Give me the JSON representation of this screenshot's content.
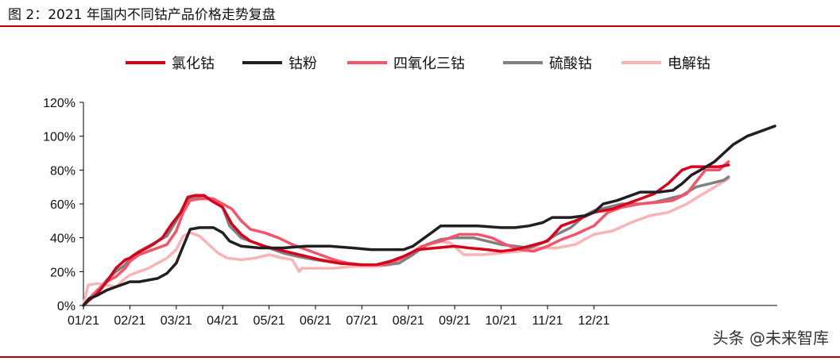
{
  "figure_title": "图 2：2021 年国内不同钴产品价格走势复盘",
  "watermark": "头条 @未来智库",
  "chart_data": {
    "type": "line",
    "title": "",
    "xlabel": "",
    "ylabel": "",
    "ylim": [
      0,
      1.2
    ],
    "grid": false,
    "legend_position": "top",
    "x_ticks": [
      "01/21",
      "02/21",
      "03/21",
      "04/21",
      "05/21",
      "06/21",
      "07/21",
      "08/21",
      "09/21",
      "10/21",
      "11/21",
      "12/21"
    ],
    "y_ticks": [
      "0%",
      "20%",
      "40%",
      "60%",
      "80%",
      "100%",
      "120%"
    ],
    "x_unit": "months since 01/21",
    "series": [
      {
        "name": "氯化钴",
        "color": "#d9001b",
        "width": 3.5,
        "points": [
          [
            0,
            0
          ],
          [
            0.12,
            0.03
          ],
          [
            0.3,
            0.07
          ],
          [
            0.5,
            0.14
          ],
          [
            0.7,
            0.22
          ],
          [
            0.9,
            0.27
          ],
          [
            1.0,
            0.28
          ],
          [
            1.1,
            0.3
          ],
          [
            1.3,
            0.33
          ],
          [
            1.5,
            0.36
          ],
          [
            1.7,
            0.4
          ],
          [
            1.9,
            0.48
          ],
          [
            2.1,
            0.55
          ],
          [
            2.25,
            0.64
          ],
          [
            2.4,
            0.65
          ],
          [
            2.6,
            0.65
          ],
          [
            2.75,
            0.62
          ],
          [
            3.0,
            0.58
          ],
          [
            3.2,
            0.48
          ],
          [
            3.4,
            0.42
          ],
          [
            3.6,
            0.38
          ],
          [
            3.9,
            0.35
          ],
          [
            4.2,
            0.33
          ],
          [
            4.5,
            0.31
          ],
          [
            4.8,
            0.29
          ],
          [
            5.1,
            0.27
          ],
          [
            5.5,
            0.25
          ],
          [
            6.0,
            0.24
          ],
          [
            6.3,
            0.24
          ],
          [
            6.6,
            0.26
          ],
          [
            6.9,
            0.29
          ],
          [
            7.2,
            0.33
          ],
          [
            7.6,
            0.34
          ],
          [
            8.0,
            0.35
          ],
          [
            8.3,
            0.34
          ],
          [
            8.7,
            0.33
          ],
          [
            9.0,
            0.32
          ],
          [
            9.3,
            0.33
          ],
          [
            9.6,
            0.35
          ],
          [
            10.0,
            0.38
          ],
          [
            10.3,
            0.47
          ],
          [
            10.6,
            0.5
          ],
          [
            11.0,
            0.55
          ],
          [
            11.4,
            0.57
          ],
          [
            11.7,
            0.6
          ],
          [
            12.0,
            0.63
          ],
          [
            12.3,
            0.66
          ],
          [
            12.6,
            0.72
          ],
          [
            12.9,
            0.8
          ],
          [
            13.1,
            0.82
          ],
          [
            13.4,
            0.82
          ],
          [
            13.7,
            0.82
          ],
          [
            13.9,
            0.83
          ]
        ]
      },
      {
        "name": "钴粉",
        "color": "#231f20",
        "width": 3.5,
        "points": [
          [
            0,
            0
          ],
          [
            0.12,
            0.04
          ],
          [
            0.3,
            0.06
          ],
          [
            0.5,
            0.09
          ],
          [
            0.7,
            0.11
          ],
          [
            0.9,
            0.13
          ],
          [
            1.0,
            0.14
          ],
          [
            1.2,
            0.14
          ],
          [
            1.4,
            0.15
          ],
          [
            1.6,
            0.16
          ],
          [
            1.8,
            0.19
          ],
          [
            2.0,
            0.25
          ],
          [
            2.15,
            0.35
          ],
          [
            2.3,
            0.45
          ],
          [
            2.5,
            0.46
          ],
          [
            2.8,
            0.46
          ],
          [
            3.0,
            0.43
          ],
          [
            3.15,
            0.38
          ],
          [
            3.4,
            0.35
          ],
          [
            3.8,
            0.34
          ],
          [
            4.3,
            0.34
          ],
          [
            4.8,
            0.35
          ],
          [
            5.3,
            0.35
          ],
          [
            5.8,
            0.34
          ],
          [
            6.2,
            0.33
          ],
          [
            6.6,
            0.33
          ],
          [
            6.9,
            0.33
          ],
          [
            7.1,
            0.35
          ],
          [
            7.3,
            0.39
          ],
          [
            7.5,
            0.43
          ],
          [
            7.7,
            0.47
          ],
          [
            8.0,
            0.47
          ],
          [
            8.5,
            0.47
          ],
          [
            9.0,
            0.46
          ],
          [
            9.3,
            0.46
          ],
          [
            9.6,
            0.47
          ],
          [
            9.9,
            0.49
          ],
          [
            10.1,
            0.52
          ],
          [
            10.5,
            0.52
          ],
          [
            10.8,
            0.53
          ],
          [
            11.0,
            0.55
          ],
          [
            11.2,
            0.6
          ],
          [
            11.5,
            0.62
          ],
          [
            11.8,
            0.65
          ],
          [
            12.0,
            0.67
          ],
          [
            12.4,
            0.67
          ],
          [
            12.7,
            0.68
          ],
          [
            12.9,
            0.72
          ],
          [
            13.1,
            0.77
          ],
          [
            13.3,
            0.8
          ],
          [
            13.6,
            0.85
          ],
          [
            13.8,
            0.9
          ],
          [
            14.0,
            0.95
          ],
          [
            14.3,
            1.0
          ],
          [
            14.6,
            1.03
          ],
          [
            14.9,
            1.06
          ]
        ]
      },
      {
        "name": "四氧化三钴",
        "color": "#f4546a",
        "width": 3.5,
        "points": [
          [
            0,
            0
          ],
          [
            0.12,
            0.04
          ],
          [
            0.3,
            0.09
          ],
          [
            0.5,
            0.14
          ],
          [
            0.7,
            0.17
          ],
          [
            0.9,
            0.22
          ],
          [
            1.0,
            0.26
          ],
          [
            1.2,
            0.3
          ],
          [
            1.4,
            0.32
          ],
          [
            1.6,
            0.34
          ],
          [
            1.8,
            0.36
          ],
          [
            2.0,
            0.44
          ],
          [
            2.15,
            0.55
          ],
          [
            2.3,
            0.62
          ],
          [
            2.5,
            0.63
          ],
          [
            2.8,
            0.63
          ],
          [
            3.0,
            0.6
          ],
          [
            3.2,
            0.57
          ],
          [
            3.4,
            0.5
          ],
          [
            3.6,
            0.45
          ],
          [
            3.9,
            0.43
          ],
          [
            4.2,
            0.4
          ],
          [
            4.5,
            0.36
          ],
          [
            4.8,
            0.33
          ],
          [
            5.1,
            0.3
          ],
          [
            5.4,
            0.27
          ],
          [
            5.7,
            0.25
          ],
          [
            6.0,
            0.24
          ],
          [
            6.4,
            0.24
          ],
          [
            6.7,
            0.26
          ],
          [
            7.0,
            0.3
          ],
          [
            7.3,
            0.35
          ],
          [
            7.7,
            0.38
          ],
          [
            8.1,
            0.42
          ],
          [
            8.5,
            0.42
          ],
          [
            8.8,
            0.4
          ],
          [
            9.1,
            0.36
          ],
          [
            9.4,
            0.33
          ],
          [
            9.7,
            0.32
          ],
          [
            10.0,
            0.35
          ],
          [
            10.3,
            0.39
          ],
          [
            10.6,
            0.42
          ],
          [
            11.0,
            0.47
          ],
          [
            11.3,
            0.55
          ],
          [
            11.6,
            0.58
          ],
          [
            12.0,
            0.6
          ],
          [
            12.4,
            0.61
          ],
          [
            12.7,
            0.62
          ],
          [
            13.0,
            0.66
          ],
          [
            13.2,
            0.73
          ],
          [
            13.4,
            0.8
          ],
          [
            13.7,
            0.8
          ],
          [
            13.9,
            0.85
          ]
        ]
      },
      {
        "name": "硫酸钴",
        "color": "#808080",
        "width": 3.5,
        "points": [
          [
            0,
            0
          ],
          [
            0.12,
            0.03
          ],
          [
            0.3,
            0.08
          ],
          [
            0.5,
            0.15
          ],
          [
            0.7,
            0.2
          ],
          [
            0.9,
            0.24
          ],
          [
            1.0,
            0.28
          ],
          [
            1.2,
            0.32
          ],
          [
            1.4,
            0.35
          ],
          [
            1.6,
            0.38
          ],
          [
            1.8,
            0.41
          ],
          [
            2.0,
            0.5
          ],
          [
            2.15,
            0.58
          ],
          [
            2.3,
            0.63
          ],
          [
            2.5,
            0.64
          ],
          [
            2.8,
            0.63
          ],
          [
            3.0,
            0.58
          ],
          [
            3.15,
            0.47
          ],
          [
            3.4,
            0.4
          ],
          [
            3.7,
            0.37
          ],
          [
            4.0,
            0.34
          ],
          [
            4.3,
            0.31
          ],
          [
            4.6,
            0.29
          ],
          [
            5.0,
            0.27
          ],
          [
            5.5,
            0.25
          ],
          [
            6.0,
            0.24
          ],
          [
            6.5,
            0.24
          ],
          [
            6.8,
            0.25
          ],
          [
            7.1,
            0.3
          ],
          [
            7.4,
            0.36
          ],
          [
            7.7,
            0.39
          ],
          [
            8.0,
            0.4
          ],
          [
            8.4,
            0.4
          ],
          [
            8.7,
            0.38
          ],
          [
            9.0,
            0.36
          ],
          [
            9.3,
            0.35
          ],
          [
            9.6,
            0.34
          ],
          [
            9.9,
            0.37
          ],
          [
            10.2,
            0.42
          ],
          [
            10.5,
            0.46
          ],
          [
            10.8,
            0.53
          ],
          [
            11.0,
            0.56
          ],
          [
            11.3,
            0.58
          ],
          [
            11.6,
            0.6
          ],
          [
            12.0,
            0.6
          ],
          [
            12.3,
            0.61
          ],
          [
            12.6,
            0.63
          ],
          [
            12.9,
            0.65
          ],
          [
            13.2,
            0.7
          ],
          [
            13.5,
            0.72
          ],
          [
            13.8,
            0.74
          ],
          [
            13.9,
            0.76
          ]
        ]
      },
      {
        "name": "电解钴",
        "color": "#fbb3b6",
        "width": 3.5,
        "points": [
          [
            0,
            0
          ],
          [
            0.1,
            0.12
          ],
          [
            0.3,
            0.13
          ],
          [
            0.5,
            0.12
          ],
          [
            0.7,
            0.11
          ],
          [
            0.9,
            0.16
          ],
          [
            1.0,
            0.18
          ],
          [
            1.2,
            0.2
          ],
          [
            1.4,
            0.22
          ],
          [
            1.6,
            0.25
          ],
          [
            1.8,
            0.28
          ],
          [
            2.0,
            0.33
          ],
          [
            2.15,
            0.41
          ],
          [
            2.3,
            0.43
          ],
          [
            2.5,
            0.41
          ],
          [
            2.7,
            0.36
          ],
          [
            2.9,
            0.31
          ],
          [
            3.1,
            0.28
          ],
          [
            3.4,
            0.27
          ],
          [
            3.7,
            0.28
          ],
          [
            4.0,
            0.3
          ],
          [
            4.3,
            0.28
          ],
          [
            4.5,
            0.27
          ],
          [
            4.65,
            0.2
          ],
          [
            4.7,
            0.22
          ],
          [
            5.0,
            0.22
          ],
          [
            5.4,
            0.22
          ],
          [
            5.8,
            0.23
          ],
          [
            6.3,
            0.23
          ],
          [
            6.6,
            0.24
          ],
          [
            6.9,
            0.27
          ],
          [
            7.2,
            0.33
          ],
          [
            7.6,
            0.38
          ],
          [
            7.9,
            0.37
          ],
          [
            8.2,
            0.3
          ],
          [
            8.6,
            0.3
          ],
          [
            9.0,
            0.31
          ],
          [
            9.4,
            0.32
          ],
          [
            9.8,
            0.34
          ],
          [
            10.2,
            0.34
          ],
          [
            10.6,
            0.36
          ],
          [
            11.0,
            0.42
          ],
          [
            11.4,
            0.44
          ],
          [
            11.8,
            0.49
          ],
          [
            12.2,
            0.53
          ],
          [
            12.6,
            0.55
          ],
          [
            13.0,
            0.6
          ],
          [
            13.3,
            0.65
          ],
          [
            13.6,
            0.7
          ],
          [
            13.9,
            0.75
          ]
        ]
      }
    ]
  }
}
